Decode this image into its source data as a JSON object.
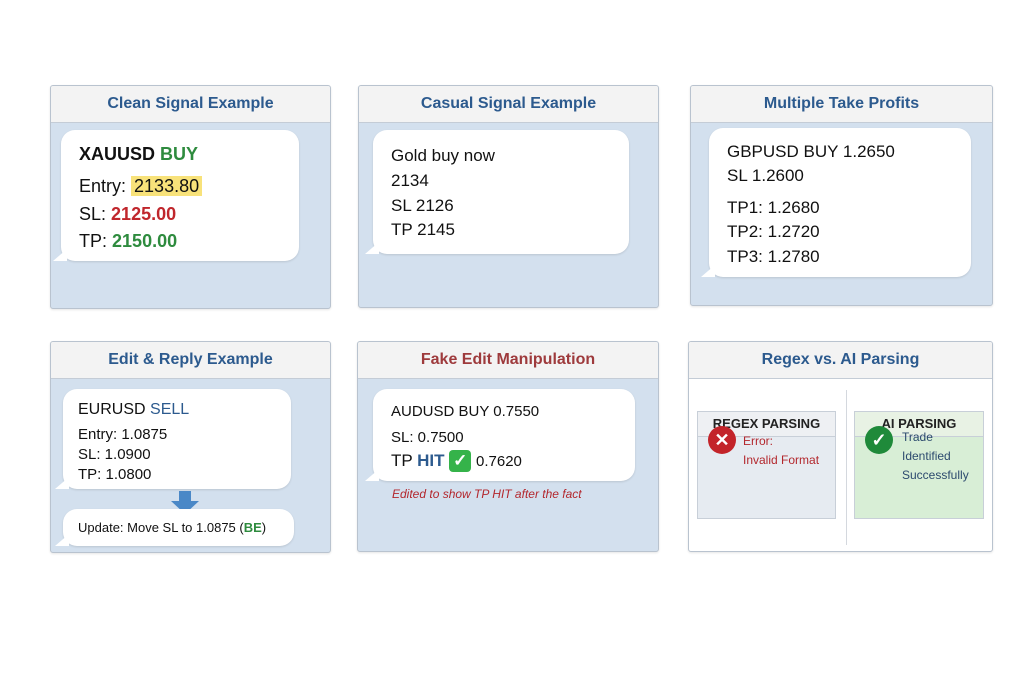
{
  "panels": {
    "clean": {
      "title": "Clean Signal Example",
      "pair": "XAUUSD",
      "side": "BUY",
      "entry_label": "Entry:",
      "entry": "2133.80",
      "sl_label": "SL:",
      "sl": "2125.00",
      "tp_label": "TP:",
      "tp": "2150.00"
    },
    "casual": {
      "title": "Casual Signal Example",
      "lines": [
        "Gold buy now",
        "2134",
        "SL 2126",
        "TP 2145"
      ]
    },
    "multi": {
      "title": "Multiple Take Profits",
      "lines": [
        "GBPUSD BUY 1.2650",
        "SL 1.2600",
        "TP1: 1.2680",
        "TP2: 1.2720",
        "TP3: 1.2780"
      ]
    },
    "edit": {
      "title": "Edit & Reply Example",
      "pair": "EURUSD",
      "side": "SELL",
      "lines": [
        "Entry: 1.0875",
        "SL: 1.0900",
        "TP: 1.0800"
      ],
      "update": "Update: Move SL to 1.0875 (",
      "update_be": "BE",
      "update_end": ")"
    },
    "fake": {
      "title": "Fake Edit Manipulation",
      "line1": "AUDUSD BUY 0.7550",
      "line2": "SL: 0.7500",
      "tp": "TP",
      "hit": "HIT",
      "check": "✓",
      "tp_value": "0.7620",
      "caption": "Edited to show TP HIT after the fact"
    },
    "compare": {
      "title": "Regex vs. AI Parsing",
      "regex": {
        "title": "REGEX PARSING",
        "icon": "✕",
        "line1": "Error:",
        "line2": "Invalid Format"
      },
      "ai": {
        "title": "AI PARSING",
        "icon": "✓",
        "lines": [
          "Trade",
          "Identified",
          "Successfully"
        ]
      }
    }
  },
  "colors": {
    "buy": "#2e8b3e",
    "sell": "#2c5a8e",
    "error": "#c0262c",
    "highlight": "#f8e27a"
  }
}
